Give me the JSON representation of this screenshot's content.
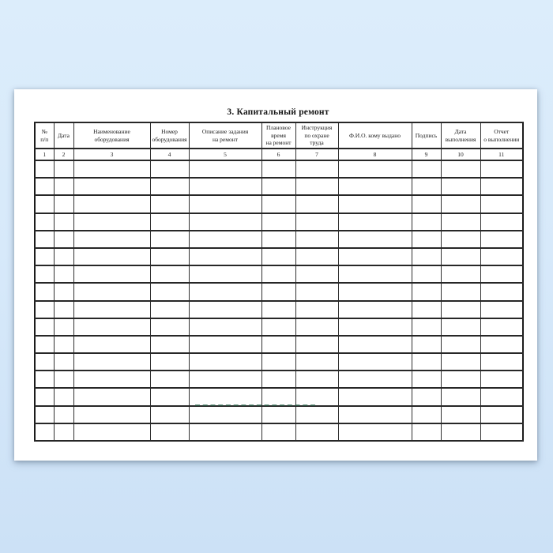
{
  "title": "3. Капитальный ремонт",
  "table": {
    "columns": [
      {
        "num": "1",
        "label": "№\nп/п"
      },
      {
        "num": "2",
        "label": "Дата"
      },
      {
        "num": "3",
        "label": "Наименование\nоборудования"
      },
      {
        "num": "4",
        "label": "Номер\nоборудования"
      },
      {
        "num": "5",
        "label": "Описание задания\nна ремонт"
      },
      {
        "num": "6",
        "label": "Плановое\nвремя\nна ремонт"
      },
      {
        "num": "7",
        "label": "Инструкция\nпо охране\nтруда"
      },
      {
        "num": "8",
        "label": "Ф.И.О. кому выдано"
      },
      {
        "num": "9",
        "label": "Подпись"
      },
      {
        "num": "10",
        "label": "Дата\nвыполнения"
      },
      {
        "num": "11",
        "label": "Отчет\nо выполнении"
      }
    ],
    "empty_row_count": 16,
    "filled_cells": []
  },
  "watermark": {
    "style": "faint dashed green line, illegible",
    "color": "#2a6249"
  },
  "colors": {
    "background_top": "#dcedfb",
    "background_bottom": "#cce1f6",
    "page": "#ffffff",
    "table_border": "#272727",
    "text": "#141414"
  }
}
